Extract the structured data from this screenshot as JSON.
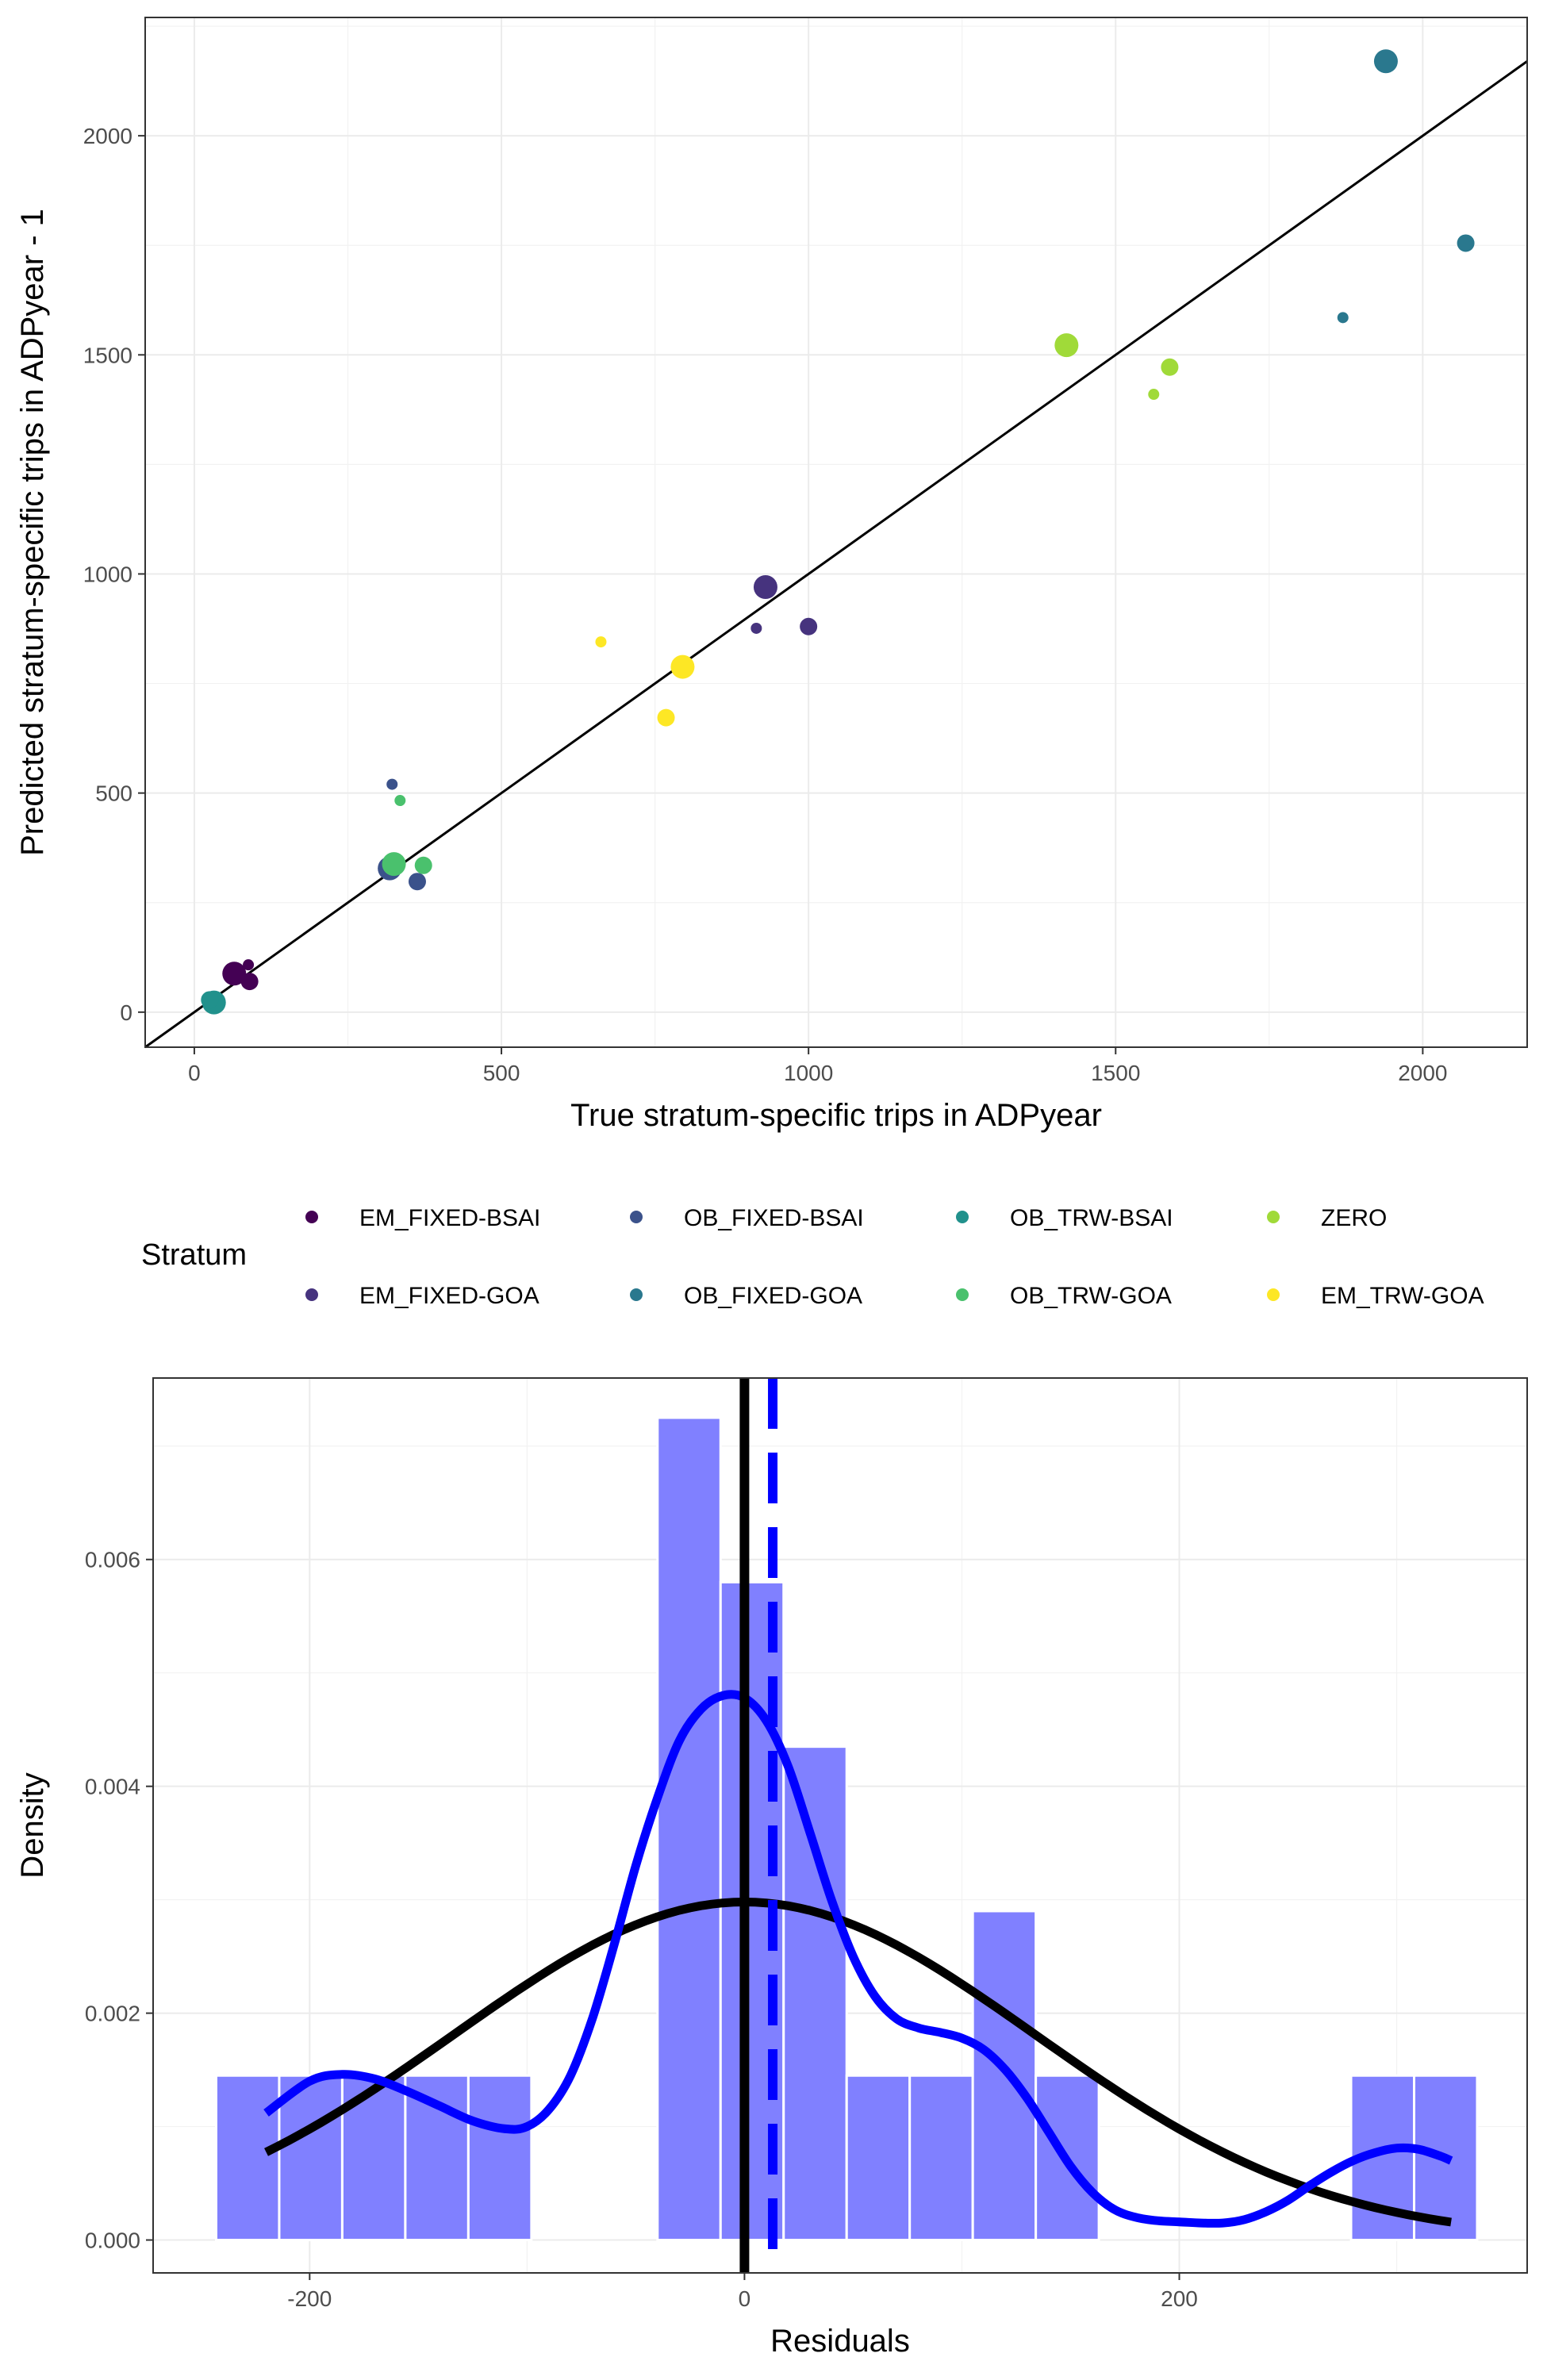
{
  "chart_data": [
    {
      "type": "scatter",
      "xlabel": "True stratum-specific trips in ADPyear",
      "ylabel": "Predicted stratum-specific trips in ADPyear - 1",
      "xlim": [
        -80,
        2170
      ],
      "ylim": [
        -80,
        2270
      ],
      "x_ticks": [
        0,
        500,
        1000,
        1500,
        2000
      ],
      "y_ticks": [
        0,
        500,
        1000,
        1500,
        2000
      ],
      "x_tick_labels": [
        "0",
        "500",
        "1000",
        "1500",
        "2000"
      ],
      "y_tick_labels": [
        "0",
        "500",
        "1000",
        "1500",
        "2000"
      ],
      "grid": true,
      "reference_line": {
        "intercept": 0,
        "slope": 1,
        "color": "#000000"
      },
      "legend": {
        "title": "Stratum",
        "position": "bottom",
        "entries": [
          {
            "label": "EM_FIXED-BSAI",
            "color": "#440154"
          },
          {
            "label": "OB_FIXED-BSAI",
            "color": "#3b528b"
          },
          {
            "label": "OB_TRW-BSAI",
            "color": "#21918c"
          },
          {
            "label": "ZERO",
            "color": "#a0da39"
          },
          {
            "label": "EM_FIXED-GOA",
            "color": "#46337e"
          },
          {
            "label": "OB_FIXED-GOA",
            "color": "#2a788e"
          },
          {
            "label": "OB_TRW-GOA",
            "color": "#4ac16d"
          },
          {
            "label": "EM_TRW-GOA",
            "color": "#fde725"
          }
        ]
      },
      "points": [
        {
          "stratum": "EM_FIXED-BSAI",
          "x": 65,
          "y": 88,
          "size": 3
        },
        {
          "stratum": "EM_FIXED-BSAI",
          "x": 90,
          "y": 70,
          "size": 2
        },
        {
          "stratum": "EM_FIXED-BSAI",
          "x": 88,
          "y": 108,
          "size": 1
        },
        {
          "stratum": "OB_TRW-BSAI",
          "x": 32,
          "y": 22,
          "size": 3
        },
        {
          "stratum": "OB_TRW-BSAI",
          "x": 25,
          "y": 28,
          "size": 2
        },
        {
          "stratum": "OB_FIXED-BSAI",
          "x": 318,
          "y": 328,
          "size": 3
        },
        {
          "stratum": "OB_FIXED-BSAI",
          "x": 363,
          "y": 298,
          "size": 2
        },
        {
          "stratum": "OB_FIXED-BSAI",
          "x": 322,
          "y": 520,
          "size": 1
        },
        {
          "stratum": "OB_TRW-GOA",
          "x": 325,
          "y": 338,
          "size": 3
        },
        {
          "stratum": "OB_TRW-GOA",
          "x": 373,
          "y": 335,
          "size": 2
        },
        {
          "stratum": "OB_TRW-GOA",
          "x": 335,
          "y": 483,
          "size": 1
        },
        {
          "stratum": "EM_TRW-GOA",
          "x": 795,
          "y": 788,
          "size": 3
        },
        {
          "stratum": "EM_TRW-GOA",
          "x": 768,
          "y": 672,
          "size": 2
        },
        {
          "stratum": "EM_TRW-GOA",
          "x": 662,
          "y": 845,
          "size": 1
        },
        {
          "stratum": "EM_FIXED-GOA",
          "x": 930,
          "y": 970,
          "size": 3
        },
        {
          "stratum": "EM_FIXED-GOA",
          "x": 1000,
          "y": 880,
          "size": 2
        },
        {
          "stratum": "EM_FIXED-GOA",
          "x": 915,
          "y": 876,
          "size": 1
        },
        {
          "stratum": "ZERO",
          "x": 1420,
          "y": 1522,
          "size": 3
        },
        {
          "stratum": "ZERO",
          "x": 1588,
          "y": 1472,
          "size": 2
        },
        {
          "stratum": "ZERO",
          "x": 1562,
          "y": 1410,
          "size": 1
        },
        {
          "stratum": "OB_FIXED-GOA",
          "x": 1940,
          "y": 2170,
          "size": 3
        },
        {
          "stratum": "OB_FIXED-GOA",
          "x": 2070,
          "y": 1755,
          "size": 2
        },
        {
          "stratum": "OB_FIXED-GOA",
          "x": 1870,
          "y": 1585,
          "size": 1
        }
      ]
    },
    {
      "type": "bar",
      "subtype": "histogram",
      "xlabel": "Residuals",
      "ylabel": "Density",
      "xlim": [
        -272,
        360
      ],
      "ylim": [
        -0.00029,
        0.0076
      ],
      "x_ticks": [
        -200,
        0,
        200
      ],
      "y_ticks": [
        0,
        0.002,
        0.004,
        0.006
      ],
      "x_tick_labels": [
        "-200",
        "0",
        "200"
      ],
      "y_tick_labels": [
        "0.000",
        "0.002",
        "0.004",
        "0.006"
      ],
      "grid": true,
      "bar_color": "#8080ff",
      "bins": [
        {
          "x0": -243,
          "x1": -214,
          "density": 0.00145
        },
        {
          "x0": -214,
          "x1": -185,
          "density": 0.00145
        },
        {
          "x0": -185,
          "x1": -156,
          "density": 0.00145
        },
        {
          "x0": -156,
          "x1": -127,
          "density": 0.00145
        },
        {
          "x0": -127,
          "x1": -98,
          "density": 0.00145
        },
        {
          "x0": -98,
          "x1": -69,
          "density": 0
        },
        {
          "x0": -69,
          "x1": -40,
          "density": 0
        },
        {
          "x0": -40,
          "x1": -11,
          "density": 0.00725
        },
        {
          "x0": -11,
          "x1": 18,
          "density": 0.0058
        },
        {
          "x0": 18,
          "x1": 47,
          "density": 0.00435
        },
        {
          "x0": 47,
          "x1": 76,
          "density": 0.00145
        },
        {
          "x0": 76,
          "x1": 105,
          "density": 0.00145
        },
        {
          "x0": 105,
          "x1": 134,
          "density": 0.0029
        },
        {
          "x0": 134,
          "x1": 163,
          "density": 0.00145
        },
        {
          "x0": 163,
          "x1": 192,
          "density": 0
        },
        {
          "x0": 192,
          "x1": 221,
          "density": 0
        },
        {
          "x0": 221,
          "x1": 250,
          "density": 0
        },
        {
          "x0": 250,
          "x1": 279,
          "density": 0
        },
        {
          "x0": 279,
          "x1": 308,
          "density": 0.00145
        },
        {
          "x0": 308,
          "x1": 337,
          "density": 0.00145
        }
      ],
      "normal_curve": {
        "color": "#000000",
        "mean": 0,
        "peak_density": 0.00298,
        "sd": 134,
        "x_range": [
          -220,
          325
        ]
      },
      "kernel_density": {
        "color": "#0000ff",
        "x": [
          -220,
          -200,
          -185,
          -170,
          -155,
          -140,
          -125,
          -110,
          -100,
          -90,
          -80,
          -70,
          -60,
          -50,
          -40,
          -30,
          -20,
          -10,
          0,
          10,
          20,
          30,
          40,
          50,
          60,
          70,
          80,
          90,
          100,
          110,
          120,
          130,
          140,
          150,
          160,
          170,
          180,
          190,
          200,
          210,
          220,
          230,
          240,
          250,
          260,
          270,
          280,
          290,
          300,
          310,
          320,
          325
        ],
        "y": [
          0.00112,
          0.0014,
          0.00146,
          0.00142,
          0.00131,
          0.00118,
          0.00105,
          0.00098,
          0.001,
          0.00115,
          0.00145,
          0.00195,
          0.0026,
          0.0033,
          0.0039,
          0.0044,
          0.00468,
          0.0048,
          0.00478,
          0.00458,
          0.00418,
          0.0036,
          0.003,
          0.0025,
          0.00215,
          0.00195,
          0.00187,
          0.00183,
          0.00178,
          0.00168,
          0.0015,
          0.00125,
          0.00095,
          0.00065,
          0.00042,
          0.00027,
          0.0002,
          0.00017,
          0.00016,
          0.00015,
          0.00015,
          0.00018,
          0.00025,
          0.00035,
          0.00048,
          0.0006,
          0.0007,
          0.00077,
          0.00081,
          0.0008,
          0.00074,
          0.0007
        ]
      },
      "vlines": [
        {
          "x": 0,
          "color": "#000000",
          "style": "solid"
        },
        {
          "x": 13,
          "color": "#0000ff",
          "style": "dashed"
        }
      ]
    }
  ]
}
